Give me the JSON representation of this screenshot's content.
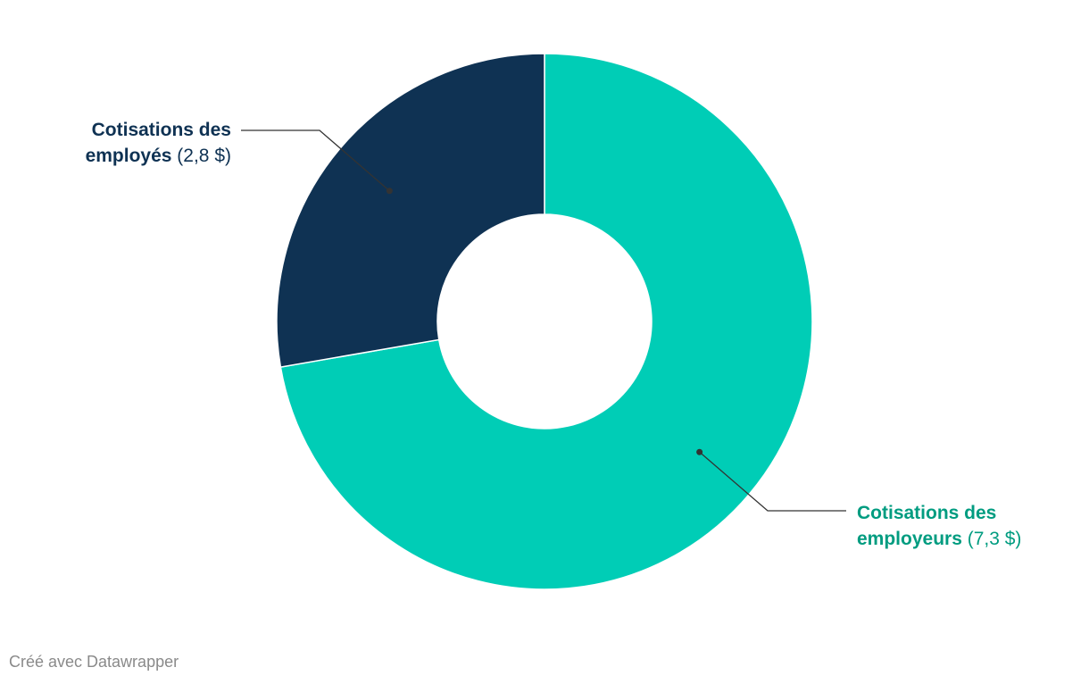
{
  "chart_data": {
    "type": "pie",
    "variant": "donut",
    "categories": [
      "Cotisations des employeurs",
      "Cotisations des employés"
    ],
    "values": [
      7.3,
      2.8
    ],
    "colors": [
      "#00cdb6",
      "#0f3253"
    ],
    "labels": [
      {
        "line1": "Cotisations des",
        "line2_bold": "employeurs",
        "value_text": "(7,3 $)",
        "color": "#009c80"
      },
      {
        "line1": "Cotisations des",
        "line2_bold": "employés",
        "value_text": "(2,8 $)",
        "color": "#0f3253"
      }
    ],
    "legend": "none",
    "start_angle": "top, clockwise"
  },
  "footer": {
    "credit": "Créé avec Datawrapper"
  }
}
